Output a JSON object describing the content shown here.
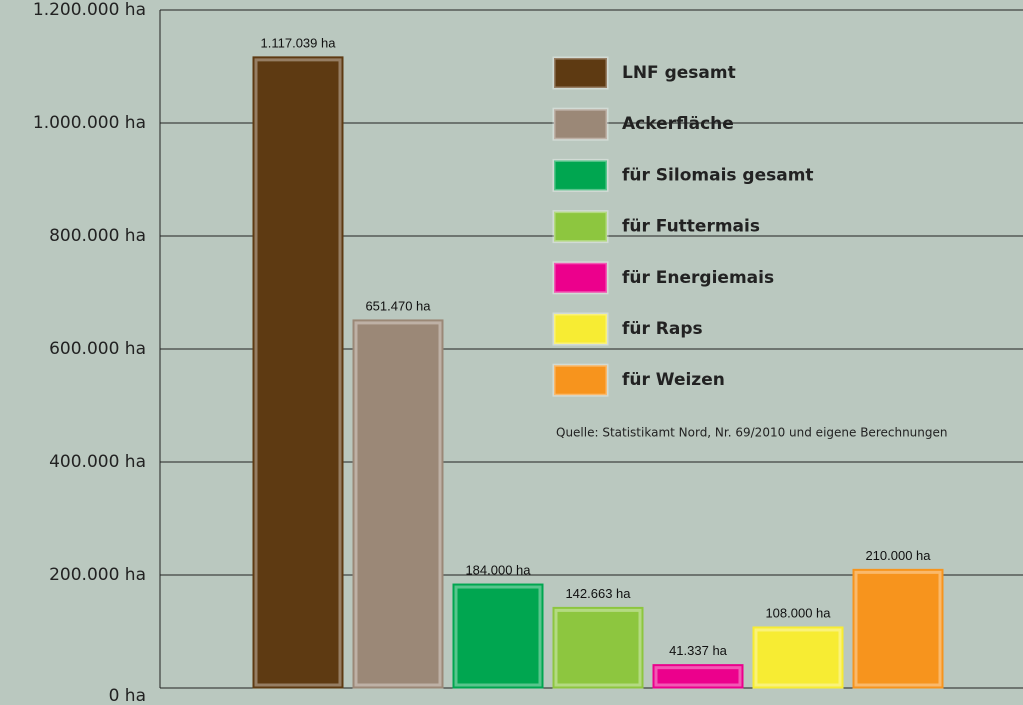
{
  "chart_data": {
    "type": "bar",
    "categories": [
      "LNF gesamt",
      "Ackerfläche",
      "für Silomais gesamt",
      "für Futtermais",
      "für Energiemais",
      "für Raps",
      "für Weizen"
    ],
    "values": [
      1117039,
      651470,
      184000,
      142663,
      41337,
      108000,
      210000
    ],
    "value_labels": [
      "1.117.039 ha",
      "651.470 ha",
      "184.000 ha",
      "142.663 ha",
      "41.337 ha",
      "108.000 ha",
      "210.000 ha"
    ],
    "colors": [
      "#5e3a12",
      "#9b8877",
      "#00a650",
      "#8dc63f",
      "#ec008c",
      "#f7ec33",
      "#f7941d"
    ],
    "ylim": [
      0,
      1200000
    ],
    "yticks": [
      {
        "value": 0,
        "label": "0 ha"
      },
      {
        "value": 200000,
        "label": "200.000 ha"
      },
      {
        "value": 400000,
        "label": "400.000 ha"
      },
      {
        "value": 600000,
        "label": "600.000 ha"
      },
      {
        "value": 800000,
        "label": "800.000 ha"
      },
      {
        "value": 1000000,
        "label": "1.000.000 ha"
      },
      {
        "value": 1200000,
        "label": "1.200.000 ha"
      }
    ],
    "grid": true,
    "annotation": "Quelle: Statistikamt Nord, Nr. 69/2010 und eigene Berechnungen"
  }
}
